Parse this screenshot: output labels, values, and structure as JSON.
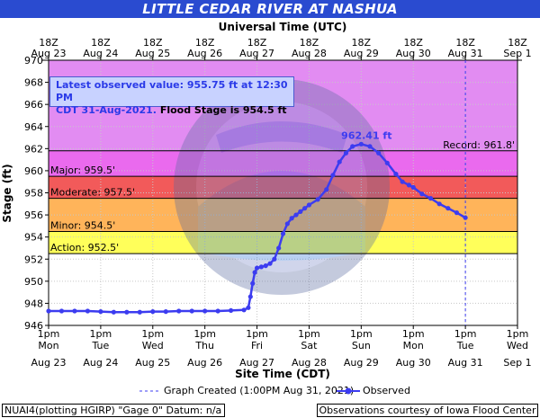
{
  "title": "LITTLE CEDAR RIVER AT NASHUA",
  "top_axis_title": "Universal Time (UTC)",
  "bottom_axis_title": "Site Time (CDT)",
  "y_axis_title": "Stage (ft)",
  "info": {
    "line1": "Latest observed value: 955.75 ft at 12:30 PM",
    "line2_blue": "CDT 31-Aug-2021.",
    "line2_black": " Flood Stage is 954.5 ft"
  },
  "legend": {
    "graph_created": "Graph Created (1:00PM Aug 31, 2021)",
    "observed": "Observed"
  },
  "footer": {
    "left": "NUAI4(plotting HGIRP) \"Gage 0\" Datum: n/a",
    "right": "Observations courtesy of Iowa Flood Center"
  },
  "colors": {
    "record": "#e28cf2",
    "major": "#ea6aee",
    "moderate": "#f25a5a",
    "minor": "#ffb45a",
    "action": "#ffff5a",
    "observed": "#3c3cf0",
    "title_bar": "#2a4bd0"
  },
  "chart_data": {
    "type": "line",
    "title": "LITTLE CEDAR RIVER AT NASHUA",
    "ylabel": "Stage (ft)",
    "xlabel": "Site Time (CDT)",
    "ylim": [
      946,
      970
    ],
    "yticks": [
      946,
      948,
      950,
      952,
      954,
      956,
      958,
      960,
      962,
      964,
      966,
      968,
      970
    ],
    "x_start_hours": 0,
    "x_end_hours": 216,
    "bottom_ticks": [
      {
        "h": 0,
        "l1": "1pm",
        "l2": "Mon",
        "l3": "Aug 23"
      },
      {
        "h": 24,
        "l1": "1pm",
        "l2": "Tue",
        "l3": "Aug 24"
      },
      {
        "h": 48,
        "l1": "1pm",
        "l2": "Wed",
        "l3": "Aug 25"
      },
      {
        "h": 72,
        "l1": "1pm",
        "l2": "Thu",
        "l3": "Aug 26"
      },
      {
        "h": 96,
        "l1": "1pm",
        "l2": "Fri",
        "l3": "Aug 27"
      },
      {
        "h": 120,
        "l1": "1pm",
        "l2": "Sat",
        "l3": "Aug 28"
      },
      {
        "h": 144,
        "l1": "1pm",
        "l2": "Sun",
        "l3": "Aug 29"
      },
      {
        "h": 168,
        "l1": "1pm",
        "l2": "Mon",
        "l3": "Aug 30"
      },
      {
        "h": 192,
        "l1": "1pm",
        "l2": "Tue",
        "l3": "Aug 31"
      },
      {
        "h": 216,
        "l1": "1pm",
        "l2": "Wed",
        "l3": "Sep 1"
      }
    ],
    "top_ticks": [
      {
        "h": 0,
        "l1": "18Z",
        "l2": "Aug 23"
      },
      {
        "h": 24,
        "l1": "18Z",
        "l2": "Aug 24"
      },
      {
        "h": 48,
        "l1": "18Z",
        "l2": "Aug 25"
      },
      {
        "h": 72,
        "l1": "18Z",
        "l2": "Aug 26"
      },
      {
        "h": 96,
        "l1": "18Z",
        "l2": "Aug 27"
      },
      {
        "h": 120,
        "l1": "18Z",
        "l2": "Aug 28"
      },
      {
        "h": 144,
        "l1": "18Z",
        "l2": "Aug 29"
      },
      {
        "h": 168,
        "l1": "18Z",
        "l2": "Aug 30"
      },
      {
        "h": 192,
        "l1": "18Z",
        "l2": "Aug 31"
      },
      {
        "h": 216,
        "l1": "18Z",
        "l2": "Sep 1"
      }
    ],
    "thresholds": [
      {
        "name": "Record",
        "label": "Record: 961.8'",
        "value": 961.8,
        "top": 970,
        "align": "right"
      },
      {
        "name": "Major",
        "label": "Major: 959.5'",
        "value": 959.5,
        "top": 961.8,
        "align": "left"
      },
      {
        "name": "Moderate",
        "label": "Moderate: 957.5'",
        "value": 957.5,
        "top": 959.5,
        "align": "left"
      },
      {
        "name": "Minor",
        "label": "Minor: 954.5'",
        "value": 954.5,
        "top": 957.5,
        "align": "left"
      },
      {
        "name": "Action",
        "label": "Action: 952.5'",
        "value": 952.5,
        "top": 954.5,
        "align": "left"
      }
    ],
    "peak_label": "962.41 ft",
    "peak": {
      "h": 144,
      "y": 962.41
    },
    "graph_created_h": 192,
    "series": [
      {
        "name": "Observed",
        "points": [
          [
            0,
            947.3
          ],
          [
            6,
            947.3
          ],
          [
            12,
            947.3
          ],
          [
            18,
            947.3
          ],
          [
            24,
            947.25
          ],
          [
            30,
            947.2
          ],
          [
            36,
            947.2
          ],
          [
            42,
            947.2
          ],
          [
            48,
            947.25
          ],
          [
            54,
            947.25
          ],
          [
            60,
            947.3
          ],
          [
            66,
            947.3
          ],
          [
            72,
            947.3
          ],
          [
            78,
            947.3
          ],
          [
            84,
            947.35
          ],
          [
            90,
            947.4
          ],
          [
            92,
            947.6
          ],
          [
            93,
            948.6
          ],
          [
            94,
            949.8
          ],
          [
            95,
            950.8
          ],
          [
            96,
            951.2
          ],
          [
            98,
            951.3
          ],
          [
            100,
            951.4
          ],
          [
            102,
            951.6
          ],
          [
            104,
            952.0
          ],
          [
            106,
            953.0
          ],
          [
            108,
            954.3
          ],
          [
            110,
            955.2
          ],
          [
            112,
            955.7
          ],
          [
            114,
            956.0
          ],
          [
            116,
            956.3
          ],
          [
            118,
            956.6
          ],
          [
            120,
            956.9
          ],
          [
            124,
            957.4
          ],
          [
            128,
            958.3
          ],
          [
            131,
            959.6
          ],
          [
            134,
            960.8
          ],
          [
            137,
            961.6
          ],
          [
            140,
            962.2
          ],
          [
            144,
            962.41
          ],
          [
            148,
            962.2
          ],
          [
            152,
            961.6
          ],
          [
            156,
            960.7
          ],
          [
            160,
            959.7
          ],
          [
            163,
            959.0
          ],
          [
            166,
            958.7
          ],
          [
            168,
            958.5
          ],
          [
            172,
            957.9
          ],
          [
            176,
            957.5
          ],
          [
            180,
            957.0
          ],
          [
            184,
            956.6
          ],
          [
            188,
            956.2
          ],
          [
            192,
            955.75
          ]
        ]
      }
    ]
  }
}
